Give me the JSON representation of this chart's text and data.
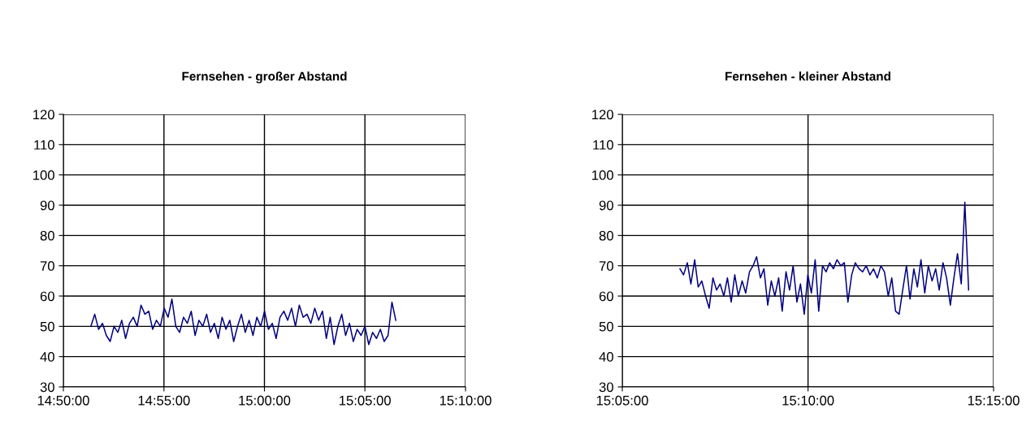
{
  "chart_data": [
    {
      "type": "line",
      "title": "Fernsehen - großer Abstand",
      "grid": true,
      "marker": "none",
      "line_style": "solid",
      "xlim": [
        14.8333,
        15.1667
      ],
      "ylim": [
        30,
        120
      ],
      "xticks": [
        {
          "value": 14.8333,
          "label": "14:50:00"
        },
        {
          "value": 14.9167,
          "label": "14:55:00"
        },
        {
          "value": 15.0,
          "label": "15:00:00"
        },
        {
          "value": 15.0833,
          "label": "15:05:00"
        },
        {
          "value": 15.1667,
          "label": "15:10:00"
        }
      ],
      "yticks": [
        30,
        40,
        50,
        60,
        70,
        80,
        90,
        100,
        110,
        120
      ],
      "series": [
        {
          "color": "#000080",
          "x": [
            14.8561,
            14.8593,
            14.8625,
            14.8657,
            14.8689,
            14.8721,
            14.8753,
            14.8785,
            14.8817,
            14.8849,
            14.8881,
            14.8913,
            14.8945,
            14.8977,
            14.9009,
            14.9041,
            14.9073,
            14.9105,
            14.9137,
            14.9169,
            14.9201,
            14.9233,
            14.9265,
            14.9297,
            14.9329,
            14.9361,
            14.9393,
            14.9425,
            14.9457,
            14.9489,
            14.9521,
            14.9553,
            14.9585,
            14.9617,
            14.9649,
            14.9681,
            14.9713,
            14.9745,
            14.9777,
            14.9809,
            14.9841,
            14.9873,
            14.9905,
            14.9937,
            14.9969,
            15.0001,
            15.0033,
            15.0065,
            15.0097,
            15.0129,
            15.0161,
            15.0193,
            15.0225,
            15.0257,
            15.0289,
            15.0321,
            15.0353,
            15.0385,
            15.0417,
            15.0449,
            15.0481,
            15.0513,
            15.0545,
            15.0577,
            15.0609,
            15.0641,
            15.0673,
            15.0705,
            15.0737,
            15.0769,
            15.0801,
            15.0833,
            15.0865,
            15.0897,
            15.0929,
            15.0961,
            15.0993,
            15.1025,
            15.1057,
            15.1089
          ],
          "values": [
            50,
            54,
            49,
            51,
            47,
            45,
            50,
            48,
            52,
            46,
            51,
            53,
            50,
            57,
            54,
            55,
            49,
            52,
            50,
            56,
            53,
            59,
            50,
            48,
            53,
            51,
            55,
            47,
            52,
            50,
            54,
            48,
            51,
            46,
            53,
            49,
            52,
            45,
            50,
            54,
            48,
            52,
            47,
            53,
            50,
            55,
            49,
            51,
            46,
            53,
            55,
            52,
            56,
            50,
            57,
            53,
            54,
            51,
            56,
            52,
            55,
            46,
            53,
            44,
            50,
            54,
            47,
            51,
            45,
            49,
            47,
            50,
            44,
            48,
            46,
            49,
            45,
            47,
            58,
            52
          ]
        }
      ]
    },
    {
      "type": "line",
      "title": "Fernsehen - kleiner Abstand",
      "grid": true,
      "marker": "none",
      "line_style": "solid",
      "xlim": [
        15.0833,
        15.25
      ],
      "ylim": [
        30,
        120
      ],
      "xticks": [
        {
          "value": 15.0833,
          "label": "15:05:00"
        },
        {
          "value": 15.1667,
          "label": "15:10:00"
        },
        {
          "value": 15.25,
          "label": "15:15:00"
        }
      ],
      "yticks": [
        30,
        40,
        50,
        60,
        70,
        80,
        90,
        100,
        110,
        120
      ],
      "series": [
        {
          "color": "#000080",
          "x": [
            15.1092,
            15.1108,
            15.1125,
            15.1141,
            15.1158,
            15.1174,
            15.119,
            15.1207,
            15.1223,
            15.124,
            15.1256,
            15.1272,
            15.1289,
            15.1305,
            15.1322,
            15.1338,
            15.1354,
            15.1371,
            15.1387,
            15.1404,
            15.142,
            15.1436,
            15.1453,
            15.1469,
            15.1486,
            15.1502,
            15.1518,
            15.1535,
            15.1551,
            15.1568,
            15.1584,
            15.16,
            15.1617,
            15.1633,
            15.165,
            15.1666,
            15.1682,
            15.1699,
            15.1715,
            15.1732,
            15.1748,
            15.1764,
            15.1781,
            15.1797,
            15.1814,
            15.183,
            15.1846,
            15.1863,
            15.1879,
            15.1896,
            15.1912,
            15.1928,
            15.1945,
            15.1961,
            15.1978,
            15.1994,
            15.201,
            15.2027,
            15.2043,
            15.206,
            15.2076,
            15.2092,
            15.2109,
            15.2125,
            15.2142,
            15.2158,
            15.2174,
            15.2191,
            15.2207,
            15.2224,
            15.224,
            15.2256,
            15.2273,
            15.2289,
            15.2306,
            15.2322,
            15.2338,
            15.2355,
            15.2371,
            15.2388
          ],
          "values": [
            69,
            67,
            71,
            64,
            72,
            63,
            65,
            60,
            56,
            66,
            62,
            64,
            60,
            66,
            58,
            67,
            60,
            65,
            61,
            68,
            70,
            73,
            66,
            69,
            57,
            65,
            60,
            66,
            55,
            68,
            62,
            70,
            58,
            64,
            54,
            67,
            61,
            72,
            55,
            70,
            68,
            71,
            69,
            72,
            70,
            71,
            58,
            67,
            71,
            69,
            68,
            70,
            67,
            69,
            66,
            70,
            68,
            60,
            66,
            55,
            54,
            62,
            70,
            59,
            69,
            63,
            72,
            61,
            70,
            65,
            69,
            62,
            71,
            66,
            57,
            66,
            74,
            64,
            91,
            62
          ]
        }
      ]
    }
  ]
}
